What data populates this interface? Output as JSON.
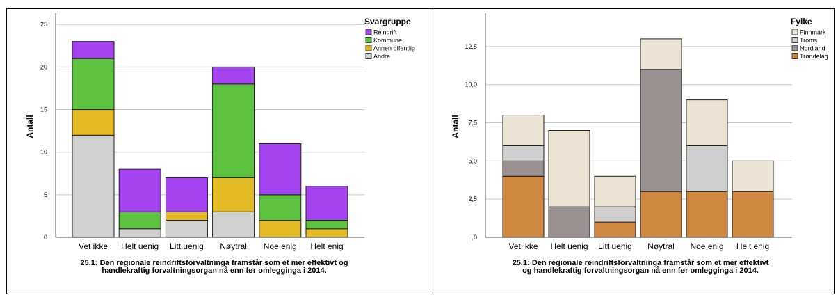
{
  "chart_data": [
    {
      "type": "bar",
      "stacked": true,
      "categories": [
        "Vet ikke",
        "Helt uenig",
        "Litt uenig",
        "Nøytral",
        "Noe enig",
        "Helt enig"
      ],
      "series": [
        {
          "name": "Andre",
          "color": "#d0d0d0",
          "values": [
            12,
            1,
            2,
            3,
            0,
            0
          ]
        },
        {
          "name": "Annen offentlig",
          "color": "#e3ba23",
          "values": [
            3,
            0,
            1,
            4,
            2,
            1
          ]
        },
        {
          "name": "Kommune",
          "color": "#5cc240",
          "values": [
            6,
            2,
            0,
            11,
            3,
            1
          ]
        },
        {
          "name": "Reindrift",
          "color": "#a443ef",
          "values": [
            2,
            5,
            4,
            2,
            6,
            4
          ]
        }
      ],
      "legend_order": [
        "Reindrift",
        "Kommune",
        "Annen offentlig",
        "Andre"
      ],
      "legend_title": "Svargruppe",
      "ylabel": "Antall",
      "ylim": [
        0,
        26
      ],
      "yticks": [
        0,
        5,
        10,
        15,
        20,
        25
      ],
      "ytick_labels": [
        "0",
        "5",
        "10",
        "15",
        "20",
        "25"
      ],
      "caption": [
        "25.1: Den regionale reindriftsforvaltninga framstår som et mer effektivt og",
        "handlekraftig forvaltningsorgan nå enn før omlegginga i 2014."
      ],
      "grid": true,
      "legend_position": "top-right"
    },
    {
      "type": "bar",
      "stacked": true,
      "categories": [
        "Vet ikke",
        "Helt uenig",
        "Litt uenig",
        "Nøytral",
        "Noe enig",
        "Helt enig"
      ],
      "series": [
        {
          "name": "Trøndelag",
          "color": "#d08740",
          "values": [
            4,
            0,
            1,
            3,
            3,
            3
          ]
        },
        {
          "name": "Nordland",
          "color": "#9a9292",
          "values": [
            1,
            2,
            0,
            8,
            0,
            0
          ]
        },
        {
          "name": "Troms",
          "color": "#cfcfcf",
          "values": [
            1,
            0,
            1,
            0,
            3,
            0
          ]
        },
        {
          "name": "Finnmark",
          "color": "#ece4d2",
          "values": [
            2,
            5,
            2,
            2,
            3,
            2
          ]
        }
      ],
      "legend_order": [
        "Finnmark",
        "Troms",
        "Nordland",
        "Trøndelag"
      ],
      "legend_title": "Fylke",
      "ylabel": "Antall",
      "ylim": [
        0,
        14.5
      ],
      "yticks": [
        0,
        2.5,
        5,
        7.5,
        10,
        12.5
      ],
      "ytick_labels": [
        ",0",
        "2,5",
        "5,0",
        "7,5",
        "10,0",
        "12,5"
      ],
      "caption": [
        "25.1: Den regionale reindriftsforvaltninga framstår som et mer effektivt",
        "og handlekraftig forvaltningsorgan nå enn før omlegginga i 2014."
      ],
      "grid": true,
      "legend_position": "top-right"
    }
  ]
}
